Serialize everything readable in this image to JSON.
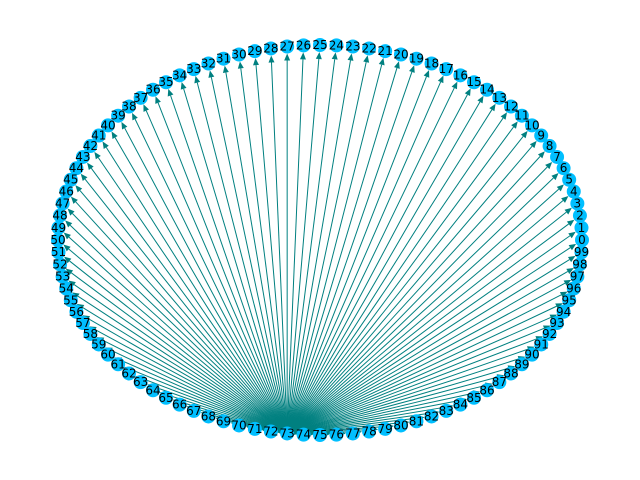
{
  "graph": {
    "type": "directed-star",
    "hub_node": "73",
    "nodes": [
      "0",
      "1",
      "2",
      "3",
      "4",
      "5",
      "6",
      "7",
      "8",
      "9",
      "10",
      "11",
      "12",
      "13",
      "14",
      "15",
      "16",
      "17",
      "18",
      "19",
      "20",
      "21",
      "22",
      "23",
      "24",
      "25",
      "26",
      "27",
      "28",
      "29",
      "30",
      "31",
      "32",
      "33",
      "34",
      "35",
      "36",
      "37",
      "38",
      "39",
      "40",
      "41",
      "42",
      "43",
      "44",
      "45",
      "46",
      "47",
      "48",
      "49",
      "50",
      "51",
      "52",
      "53",
      "54",
      "55",
      "56",
      "57",
      "58",
      "59",
      "60",
      "61",
      "62",
      "63",
      "64",
      "65",
      "66",
      "67",
      "68",
      "69",
      "70",
      "71",
      "72",
      "73",
      "74",
      "75",
      "76",
      "77",
      "78",
      "79",
      "80",
      "81",
      "82",
      "83",
      "84",
      "85",
      "86",
      "87",
      "88",
      "89",
      "90",
      "91",
      "92",
      "93",
      "94",
      "95",
      "96",
      "97",
      "98",
      "99"
    ],
    "edges_from_hub_to_all_other_nodes": true,
    "layout": "circular",
    "colors": {
      "node": "#00bfff",
      "edge": "#008080",
      "label": "#000000",
      "background": "#ffffff"
    }
  }
}
